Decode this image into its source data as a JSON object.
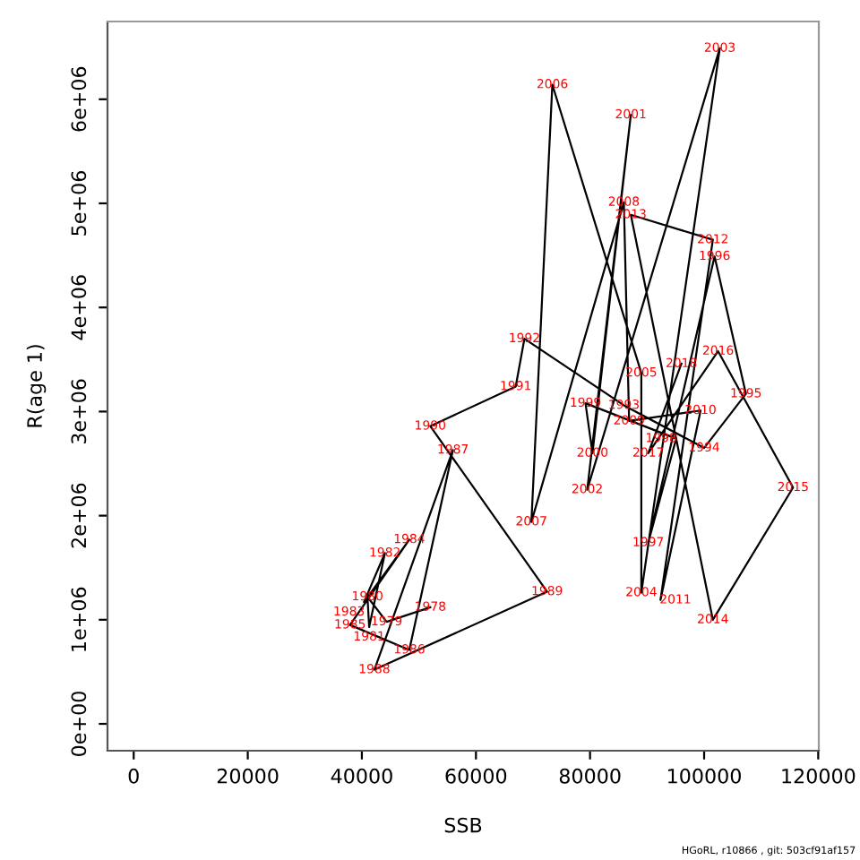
{
  "chart_data": {
    "type": "line",
    "xlabel": "SSB",
    "ylabel": "R(age 1)",
    "xlim": [
      -4590,
      120100
    ],
    "ylim": [
      -258000,
      6747000
    ],
    "xticks": [
      0,
      20000,
      40000,
      60000,
      80000,
      100000,
      120000
    ],
    "yticks": [
      {
        "value": 0,
        "label": "0e+00"
      },
      {
        "value": 1000000,
        "label": "1e+06"
      },
      {
        "value": 2000000,
        "label": "2e+06"
      },
      {
        "value": 3000000,
        "label": "3e+06"
      },
      {
        "value": 4000000,
        "label": "4e+06"
      },
      {
        "value": 5000000,
        "label": "5e+06"
      },
      {
        "value": 6000000,
        "label": "6e+06"
      }
    ],
    "grid": false,
    "legend": false,
    "marker": "none",
    "line_style": "solid",
    "series": [
      {
        "color": "#000000",
        "x": [
          52000,
          44340,
          40980,
          41280,
          44040,
          40370,
          48320,
          37920,
          48320,
          55960,
          42200,
          72470,
          51990,
          66970,
          68500,
          85930,
          100000,
          107330,
          101830,
          90210,
          95100,
          79200,
          80430,
          87150,
          79510,
          102750,
          88990,
          88990,
          73390,
          69720,
          85930,
          86850,
          99380,
          92350,
          101530,
          87150,
          101530,
          115590,
          102440,
          90210,
          96020
        ],
        "values": [
          1120000,
          980000,
          1220000,
          930000,
          1640000,
          1170000,
          1770000,
          950000,
          710000,
          2630000,
          520000,
          1270000,
          2860000,
          3240000,
          3700000,
          3060000,
          2650000,
          3170000,
          4490000,
          1740000,
          2740000,
          3080000,
          2600000,
          5850000,
          2250000,
          6490000,
          1260000,
          3370000,
          6140000,
          1940000,
          5010000,
          2910000,
          3010000,
          1190000,
          4650000,
          4890000,
          1000000,
          2270000,
          3580000,
          2600000,
          3460000
        ]
      }
    ],
    "annotations": [
      {
        "text": "1978",
        "x": 52000,
        "y": 1120000
      },
      {
        "text": "1979",
        "x": 44340,
        "y": 980000
      },
      {
        "text": "1980",
        "x": 40980,
        "y": 1220000
      },
      {
        "text": "1981",
        "x": 41280,
        "y": 930000
      },
      {
        "text": "1982",
        "x": 44040,
        "y": 1640000
      },
      {
        "text": "1983",
        "x": 40370,
        "y": 1170000
      },
      {
        "text": "1984",
        "x": 48320,
        "y": 1770000
      },
      {
        "text": "1985",
        "x": 37920,
        "y": 950000
      },
      {
        "text": "1986",
        "x": 48320,
        "y": 710000
      },
      {
        "text": "1987",
        "x": 55960,
        "y": 2630000
      },
      {
        "text": "1988",
        "x": 42200,
        "y": 520000
      },
      {
        "text": "1989",
        "x": 72470,
        "y": 1270000
      },
      {
        "text": "1990",
        "x": 51990,
        "y": 2860000
      },
      {
        "text": "1991",
        "x": 66970,
        "y": 3240000
      },
      {
        "text": "1992",
        "x": 68500,
        "y": 3700000
      },
      {
        "text": "1993",
        "x": 85930,
        "y": 3060000
      },
      {
        "text": "1994",
        "x": 100000,
        "y": 2650000
      },
      {
        "text": "1995",
        "x": 107330,
        "y": 3170000
      },
      {
        "text": "1996",
        "x": 101830,
        "y": 4490000
      },
      {
        "text": "1997",
        "x": 90210,
        "y": 1740000
      },
      {
        "text": "1998",
        "x": 95100,
        "y": 2740000
      },
      {
        "text": "1999",
        "x": 79200,
        "y": 3080000
      },
      {
        "text": "2000",
        "x": 80430,
        "y": 2600000
      },
      {
        "text": "2001",
        "x": 87150,
        "y": 5850000
      },
      {
        "text": "2002",
        "x": 79510,
        "y": 2250000
      },
      {
        "text": "2003",
        "x": 102750,
        "y": 6490000
      },
      {
        "text": "2004",
        "x": 88990,
        "y": 1260000
      },
      {
        "text": "2005",
        "x": 88990,
        "y": 3370000
      },
      {
        "text": "2006",
        "x": 73390,
        "y": 6140000
      },
      {
        "text": "2007",
        "x": 69720,
        "y": 1940000
      },
      {
        "text": "2008",
        "x": 85930,
        "y": 5010000
      },
      {
        "text": "2009",
        "x": 86850,
        "y": 2910000
      },
      {
        "text": "2010",
        "x": 99380,
        "y": 3010000
      },
      {
        "text": "2011",
        "x": 92350,
        "y": 1190000
      },
      {
        "text": "2012",
        "x": 101530,
        "y": 4650000
      },
      {
        "text": "2013",
        "x": 87150,
        "y": 4890000
      },
      {
        "text": "2014",
        "x": 101530,
        "y": 1000000
      },
      {
        "text": "2015",
        "x": 115590,
        "y": 2270000
      },
      {
        "text": "2016",
        "x": 102440,
        "y": 3580000
      },
      {
        "text": "2017",
        "x": 90210,
        "y": 2600000
      },
      {
        "text": "2018",
        "x": 96020,
        "y": 3460000
      },
      "HGoRL, r10866 , git: 503cf91af157"
    ]
  }
}
